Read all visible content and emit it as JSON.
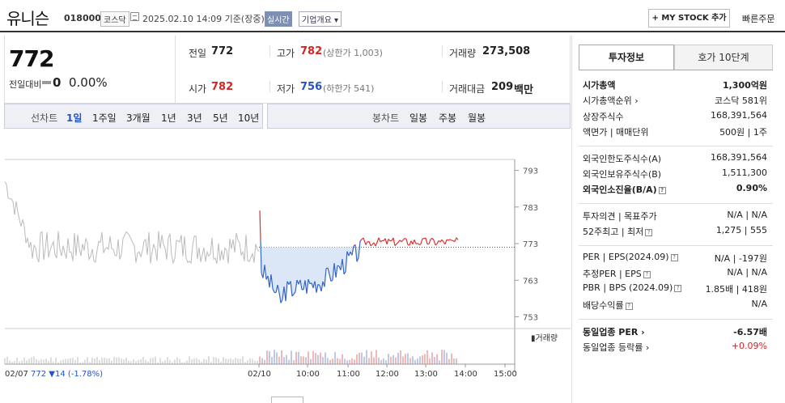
{
  "header": {
    "name": "유니슨",
    "code": "018000",
    "market": "코스닥",
    "date": "2025.02.10 14:09 기준(장중)",
    "realtime": "실시간",
    "corp_info": "기업개요 ▾",
    "mystock": "+ MY STOCK 추가",
    "quick_order": "빠른주문"
  },
  "price": {
    "current": "772",
    "change_label": "전일대비",
    "change": "0",
    "pct": "0.00%"
  },
  "stats": {
    "prev_label": "전일",
    "prev": "772",
    "high_label": "고가",
    "high": "782",
    "upper": "(상한가 1,003)",
    "vol_label": "거래량",
    "vol": "273,508",
    "open_label": "시가",
    "open": "782",
    "low_label": "저가",
    "low": "756",
    "lower": "(하한가 541)",
    "amt_label": "거래대금",
    "amt": "209",
    "amt_unit": "백만"
  },
  "chart_tabs": {
    "line_label": "선차트",
    "periods": [
      "1일",
      "1주일",
      "3개월",
      "1년",
      "3년",
      "5년",
      "10년"
    ],
    "candle_label": "봉차트",
    "candles": [
      "일봉",
      "주봉",
      "월봉"
    ]
  },
  "chart_data": {
    "type": "line",
    "yticks": [
      "793",
      "783",
      "773",
      "763",
      "753"
    ],
    "ylim": [
      752,
      796
    ],
    "xticks": [
      "02/07",
      "02/10",
      "10:00",
      "11:00",
      "12:00",
      "13:00",
      "14:00",
      "15:00"
    ],
    "base": 772,
    "volume_label": "거래량",
    "footer": {
      "date": "02/07",
      "price": "772",
      "delta": "▼14",
      "pct": "(-1.78%)"
    }
  },
  "panel": {
    "tab1": "투자정보",
    "tab2": "호가 10단계",
    "rows": [
      {
        "l": "시가총액",
        "v": "1,300억원",
        "bold": true
      },
      {
        "l": "시가총액순위 ›",
        "v": "코스닥 581위"
      },
      {
        "l": "상장주식수",
        "v": "168,391,564"
      },
      {
        "l": "액면가 | 매매단위",
        "v": "500원 | 1주"
      },
      {
        "l": "외국인한도주식수(A)",
        "v": "168,391,564"
      },
      {
        "l": "외국인보유주식수(B)",
        "v": "1,511,300"
      },
      {
        "l": "외국인소진율(B/A)",
        "v": "0.90%",
        "bold": true
      },
      {
        "l": "투자의견 | 목표주가",
        "v": "N/A | N/A"
      },
      {
        "l": "52주최고 | 최저",
        "v": "1,275 | 555"
      },
      {
        "l": "PER | EPS(2024.09)",
        "v": "N/A | -197원"
      },
      {
        "l": "추정PER | EPS",
        "v": "N/A | N/A"
      },
      {
        "l": "PBR | BPS (2024.09)",
        "v": "1.85배 | 418원"
      },
      {
        "l": "배당수익률",
        "v": "N/A"
      },
      {
        "l": "동일업종 PER ›",
        "v": "-6.57배",
        "bold": true
      },
      {
        "l": "동일업종 등락률 ›",
        "v": "+0.09%",
        "red": true
      }
    ]
  }
}
